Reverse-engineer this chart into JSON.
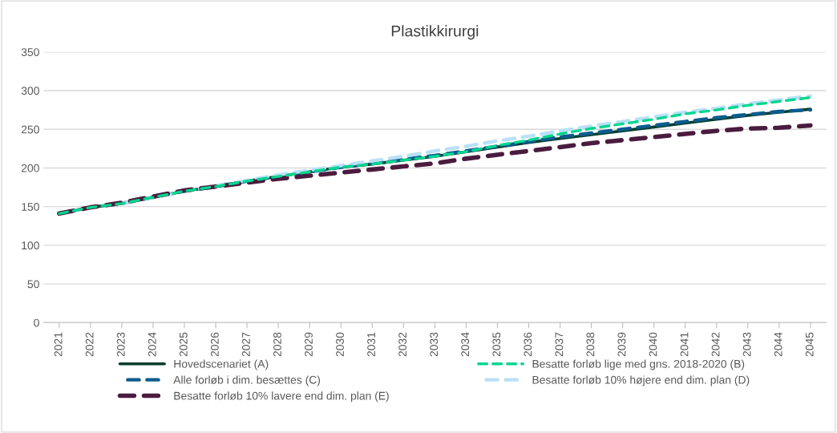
{
  "chart_data": {
    "type": "line",
    "title": "Plastikkirurgi",
    "categories": [
      "2021",
      "2022",
      "2023",
      "2024",
      "2025",
      "2026",
      "2027",
      "2028",
      "2029",
      "2030",
      "2031",
      "2032",
      "2033",
      "2034",
      "2035",
      "2036",
      "2037",
      "2038",
      "2039",
      "2040",
      "2041",
      "2042",
      "2043",
      "2044",
      "2045"
    ],
    "ylim": [
      0,
      350
    ],
    "yticks": [
      0,
      50,
      100,
      150,
      200,
      250,
      300,
      350
    ],
    "grid": "y",
    "legend": "bottom",
    "series": [
      {
        "name": "Hovedscenariet (A)",
        "color": "#003d2e",
        "line_style": "solid",
        "values": [
          141,
          149,
          154,
          162,
          170,
          176,
          183,
          189,
          195,
          201,
          205,
          210,
          215,
          221,
          227,
          233,
          238,
          243,
          248,
          253,
          258,
          263,
          268,
          272,
          276
        ]
      },
      {
        "name": "Besatte forløb lige med gns. 2018-2020 (B)",
        "color": "#00d68f",
        "line_style": "dashed",
        "values": [
          141,
          149,
          154,
          162,
          170,
          176,
          183,
          189,
          195,
          201,
          205,
          210,
          215,
          221,
          229,
          236,
          244,
          251,
          257,
          263,
          270,
          275,
          281,
          286,
          291
        ]
      },
      {
        "name": "Alle forløb i dim. besættes (C)",
        "color": "#0b5c8e",
        "line_style": "dashed",
        "values": [
          141,
          149,
          154,
          162,
          170,
          176,
          183,
          189,
          195,
          201,
          206,
          211,
          216,
          222,
          228,
          234,
          240,
          245,
          250,
          255,
          260,
          265,
          269,
          273,
          275
        ]
      },
      {
        "name": "Besatte forløb 10% højere end dim. plan (D)",
        "color": "#b9e0f7",
        "line_style": "dashed",
        "values": [
          141,
          149,
          154,
          162,
          170,
          177,
          184,
          191,
          197,
          203,
          209,
          215,
          222,
          228,
          235,
          241,
          248,
          254,
          260,
          266,
          272,
          277,
          283,
          288,
          293
        ]
      },
      {
        "name": "Besatte forløb 10% lavere end dim. plan (E)",
        "color": "#4a1c3f",
        "line_style": "dashed",
        "values": [
          141,
          149,
          155,
          163,
          171,
          176,
          181,
          186,
          190,
          194,
          198,
          202,
          206,
          212,
          217,
          222,
          227,
          232,
          236,
          240,
          244,
          248,
          251,
          252,
          255
        ]
      }
    ]
  }
}
